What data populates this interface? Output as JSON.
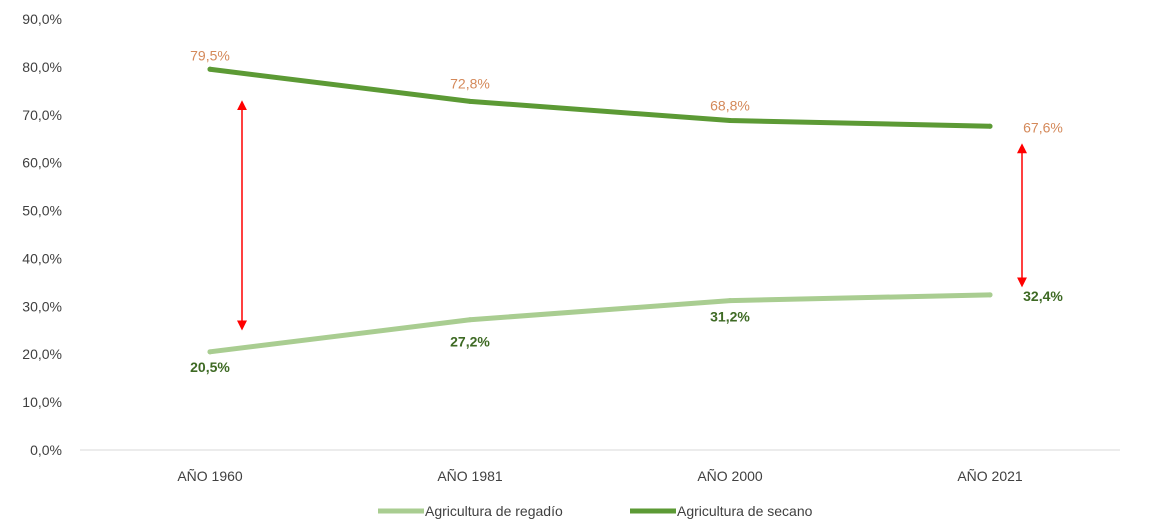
{
  "chart_data": {
    "type": "line",
    "categories": [
      "AÑO 1960",
      "AÑO 1981",
      "AÑO 2000",
      "AÑO 2021"
    ],
    "ylim": [
      0,
      90
    ],
    "yticks": [
      "0,0%",
      "10,0%",
      "20,0%",
      "30,0%",
      "40,0%",
      "50,0%",
      "60,0%",
      "70,0%",
      "80,0%",
      "90,0%"
    ],
    "grid": false,
    "legend_position": "bottom",
    "series": [
      {
        "name": "Agricultura de regadío",
        "values": [
          20.5,
          27.2,
          31.2,
          32.4
        ],
        "labels": [
          "20,5%",
          "27,2%",
          "31,2%",
          "32,4%"
        ],
        "color": "#a9cd91",
        "label_color": "#3e6a24"
      },
      {
        "name": "Agricultura de secano",
        "values": [
          79.5,
          72.8,
          68.8,
          67.6
        ],
        "labels": [
          "79,5%",
          "72,8%",
          "68,8%",
          "67,6%"
        ],
        "color": "#5c9a35",
        "label_color": "#d4895a"
      }
    ],
    "annotations": [
      {
        "type": "double-arrow",
        "category": "AÑO 1960",
        "from": 26,
        "to": 72,
        "color": "#ff0000"
      },
      {
        "type": "double-arrow",
        "category": "AÑO 2021",
        "from": 35,
        "to": 63,
        "color": "#ff0000"
      }
    ]
  }
}
